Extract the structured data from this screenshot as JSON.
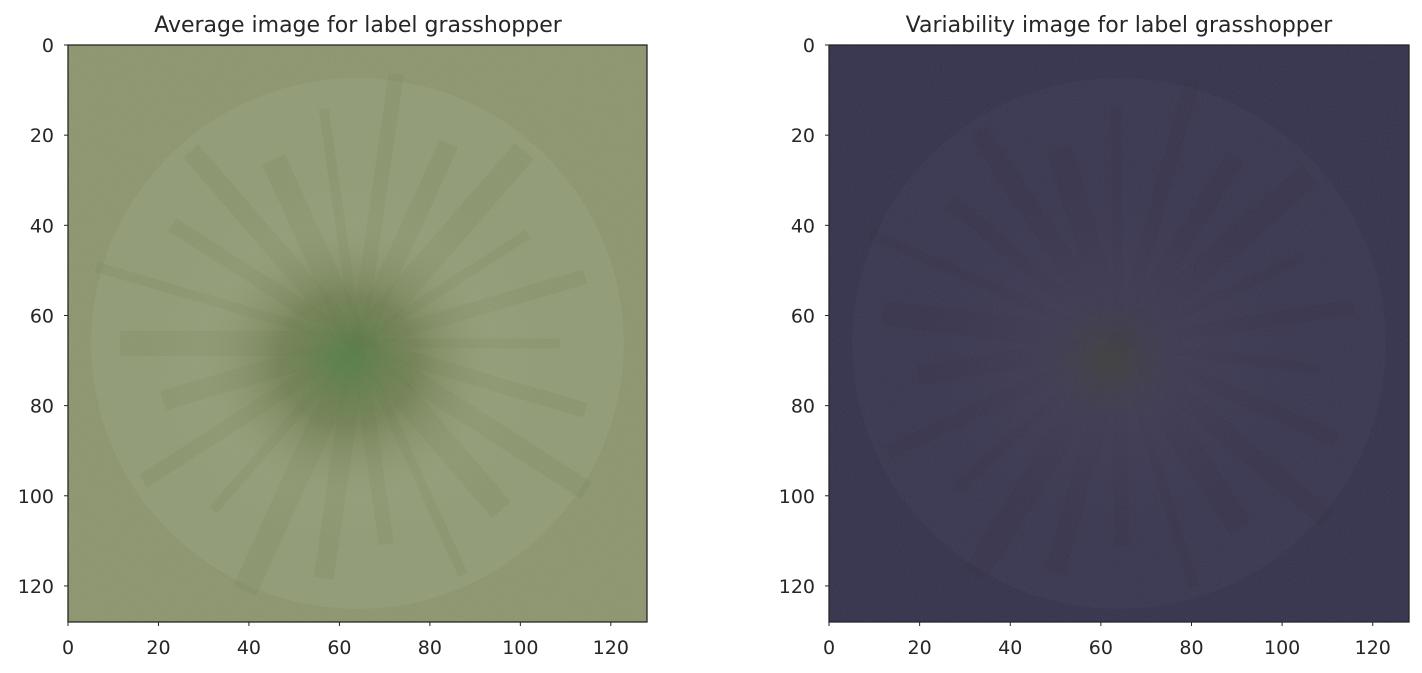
{
  "chart_data": [
    {
      "type": "heatmap",
      "title": "Average image for label grasshopper",
      "xlabel": "",
      "ylabel": "",
      "xlim": [
        0,
        128
      ],
      "ylim": [
        128,
        0
      ],
      "xticks": [
        0,
        20,
        40,
        60,
        80,
        100,
        120
      ],
      "yticks": [
        0,
        20,
        40,
        60,
        80,
        100,
        120
      ],
      "grid": false,
      "image_colors": {
        "base": "#8a936d",
        "light": "#9aa681",
        "center": "#4f7a44",
        "shadow": "#5e6e3f"
      }
    },
    {
      "type": "heatmap",
      "title": "Variability image for label grasshopper",
      "xlabel": "",
      "ylabel": "",
      "xlim": [
        0,
        128
      ],
      "ylim": [
        128,
        0
      ],
      "xticks": [
        0,
        20,
        40,
        60,
        80,
        100,
        120
      ],
      "yticks": [
        0,
        20,
        40,
        60,
        80,
        100,
        120
      ],
      "grid": false,
      "image_colors": {
        "base": "#33314a",
        "light": "#403d55",
        "center": "#3f3f3a",
        "shadow": "#2a2838"
      }
    }
  ]
}
